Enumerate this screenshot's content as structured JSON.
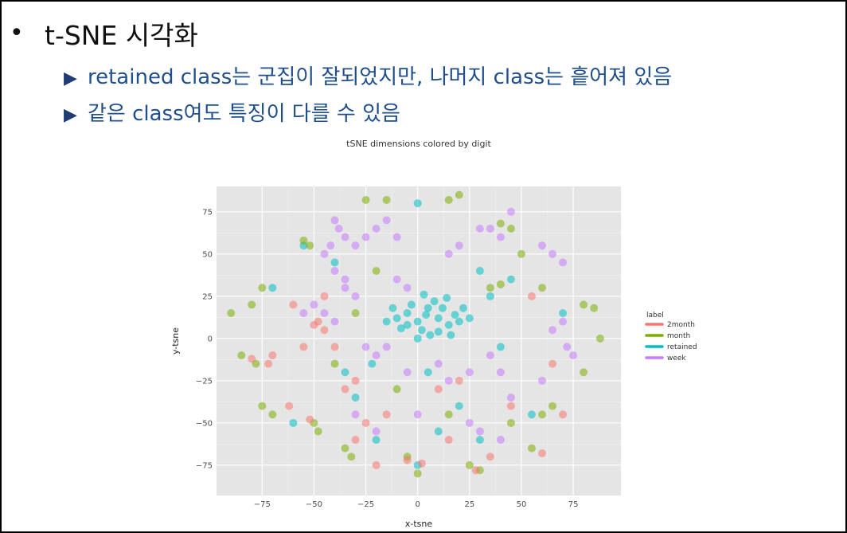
{
  "slide": {
    "bullet": "•",
    "title": "t-SNE 시각화",
    "subbullets": [
      {
        "marker": "▶",
        "text": "retained class는 군집이 잘되었지만, 나머지 class는 흩어져 있음"
      },
      {
        "marker": "▶",
        "text": "같은 class여도 특징이 다를 수 있음"
      }
    ]
  },
  "chart_data": {
    "type": "scatter",
    "title": "tSNE dimensions colored by digit",
    "xlabel": "x-tsne",
    "ylabel": "y-tsne",
    "xlim": [
      -97,
      98
    ],
    "ylim": [
      -93,
      90
    ],
    "xticks": [
      -75,
      -50,
      -25,
      0,
      25,
      50,
      75
    ],
    "yticks": [
      75,
      50,
      25,
      0,
      -25,
      -50,
      -75
    ],
    "xtick_labels": [
      "−75",
      "−50",
      "−25",
      "0",
      "25",
      "50",
      "75"
    ],
    "ytick_labels": [
      "75",
      "50",
      "25",
      "0",
      "−25",
      "−50",
      "−75"
    ],
    "grid": true,
    "panel_background": "#e5e5e5",
    "legend": {
      "title": "label",
      "placement": "right",
      "entries": [
        {
          "name": "2month",
          "color": "#f8766d"
        },
        {
          "name": "month",
          "color": "#7cae00"
        },
        {
          "name": "retained",
          "color": "#00bfc4"
        },
        {
          "name": "week",
          "color": "#c77cff"
        }
      ]
    },
    "series": [
      {
        "name": "retained",
        "color": "#00bfc4",
        "points": [
          [
            -5,
            15
          ],
          [
            0,
            10
          ],
          [
            5,
            18
          ],
          [
            10,
            12
          ],
          [
            15,
            8
          ],
          [
            -10,
            12
          ],
          [
            2,
            5
          ],
          [
            8,
            22
          ],
          [
            -3,
            20
          ],
          [
            12,
            18
          ],
          [
            18,
            14
          ],
          [
            -8,
            6
          ],
          [
            4,
            14
          ],
          [
            20,
            10
          ],
          [
            6,
            2
          ],
          [
            -12,
            18
          ],
          [
            14,
            24
          ],
          [
            0,
            0
          ],
          [
            10,
            4
          ],
          [
            -5,
            8
          ],
          [
            22,
            18
          ],
          [
            3,
            26
          ],
          [
            16,
            2
          ],
          [
            -15,
            10
          ],
          [
            25,
            12
          ],
          [
            5,
            -20
          ],
          [
            -22,
            -15
          ],
          [
            10,
            -55
          ],
          [
            0,
            -75
          ],
          [
            -55,
            55
          ],
          [
            -60,
            -50
          ],
          [
            35,
            25
          ],
          [
            40,
            -5
          ],
          [
            -30,
            -35
          ],
          [
            30,
            -60
          ],
          [
            45,
            35
          ],
          [
            -35,
            -20
          ],
          [
            55,
            -45
          ],
          [
            0,
            80
          ],
          [
            -70,
            30
          ],
          [
            30,
            40
          ],
          [
            -40,
            45
          ],
          [
            70,
            15
          ],
          [
            -20,
            -60
          ],
          [
            20,
            -40
          ]
        ]
      },
      {
        "name": "week",
        "color": "#c77cff",
        "points": [
          [
            -40,
            70
          ],
          [
            -38,
            65
          ],
          [
            -35,
            60
          ],
          [
            -42,
            55
          ],
          [
            -45,
            50
          ],
          [
            -30,
            55
          ],
          [
            -25,
            60
          ],
          [
            -20,
            65
          ],
          [
            -15,
            70
          ],
          [
            -10,
            60
          ],
          [
            -40,
            40
          ],
          [
            -35,
            35
          ],
          [
            -30,
            25
          ],
          [
            -45,
            15
          ],
          [
            -40,
            10
          ],
          [
            -25,
            -5
          ],
          [
            -20,
            -10
          ],
          [
            -15,
            -5
          ],
          [
            -5,
            -20
          ],
          [
            10,
            -15
          ],
          [
            15,
            -25
          ],
          [
            25,
            -20
          ],
          [
            35,
            -10
          ],
          [
            40,
            -20
          ],
          [
            60,
            -25
          ],
          [
            65,
            5
          ],
          [
            70,
            10
          ],
          [
            72,
            -5
          ],
          [
            65,
            50
          ],
          [
            70,
            45
          ],
          [
            60,
            55
          ],
          [
            35,
            65
          ],
          [
            40,
            60
          ],
          [
            30,
            65
          ],
          [
            45,
            75
          ],
          [
            -10,
            35
          ],
          [
            -5,
            30
          ],
          [
            30,
            -55
          ],
          [
            25,
            -50
          ],
          [
            40,
            -60
          ],
          [
            -55,
            15
          ],
          [
            -50,
            20
          ],
          [
            20,
            55
          ],
          [
            15,
            50
          ],
          [
            -30,
            -45
          ],
          [
            -20,
            -55
          ],
          [
            0,
            -45
          ],
          [
            45,
            -35
          ],
          [
            -35,
            30
          ],
          [
            75,
            -10
          ]
        ]
      },
      {
        "name": "month",
        "color": "#7cae00",
        "points": [
          [
            -25,
            82
          ],
          [
            -15,
            82
          ],
          [
            15,
            82
          ],
          [
            20,
            85
          ],
          [
            45,
            65
          ],
          [
            40,
            68
          ],
          [
            -55,
            58
          ],
          [
            -52,
            55
          ],
          [
            -75,
            30
          ],
          [
            -80,
            20
          ],
          [
            -90,
            15
          ],
          [
            -78,
            -15
          ],
          [
            -85,
            -10
          ],
          [
            -75,
            -40
          ],
          [
            -70,
            -45
          ],
          [
            -50,
            -50
          ],
          [
            -48,
            -55
          ],
          [
            -35,
            -65
          ],
          [
            -32,
            -70
          ],
          [
            -5,
            -70
          ],
          [
            0,
            -80
          ],
          [
            25,
            -75
          ],
          [
            30,
            -78
          ],
          [
            55,
            -65
          ],
          [
            60,
            -45
          ],
          [
            65,
            -40
          ],
          [
            80,
            20
          ],
          [
            85,
            18
          ],
          [
            88,
            0
          ],
          [
            80,
            -20
          ],
          [
            35,
            30
          ],
          [
            40,
            32
          ],
          [
            -30,
            15
          ],
          [
            -10,
            -30
          ],
          [
            15,
            -45
          ],
          [
            45,
            -50
          ],
          [
            -40,
            -15
          ],
          [
            60,
            30
          ],
          [
            -20,
            40
          ],
          [
            50,
            50
          ]
        ]
      },
      {
        "name": "2month",
        "color": "#f8766d",
        "points": [
          [
            -48,
            10
          ],
          [
            -45,
            5
          ],
          [
            -50,
            8
          ],
          [
            -55,
            -5
          ],
          [
            -80,
            -12
          ],
          [
            -72,
            -15
          ],
          [
            -35,
            -30
          ],
          [
            -30,
            -25
          ],
          [
            -5,
            -72
          ],
          [
            2,
            -74
          ],
          [
            -20,
            -75
          ],
          [
            28,
            -78
          ],
          [
            60,
            -68
          ],
          [
            -52,
            -48
          ],
          [
            -62,
            -40
          ],
          [
            -30,
            -60
          ],
          [
            10,
            -30
          ],
          [
            -45,
            25
          ],
          [
            -60,
            20
          ],
          [
            45,
            -40
          ],
          [
            20,
            -25
          ],
          [
            55,
            25
          ],
          [
            -15,
            -45
          ],
          [
            35,
            -70
          ],
          [
            -40,
            -5
          ],
          [
            15,
            -60
          ],
          [
            65,
            -15
          ],
          [
            -25,
            -50
          ],
          [
            70,
            -45
          ],
          [
            -70,
            -10
          ]
        ]
      }
    ]
  }
}
